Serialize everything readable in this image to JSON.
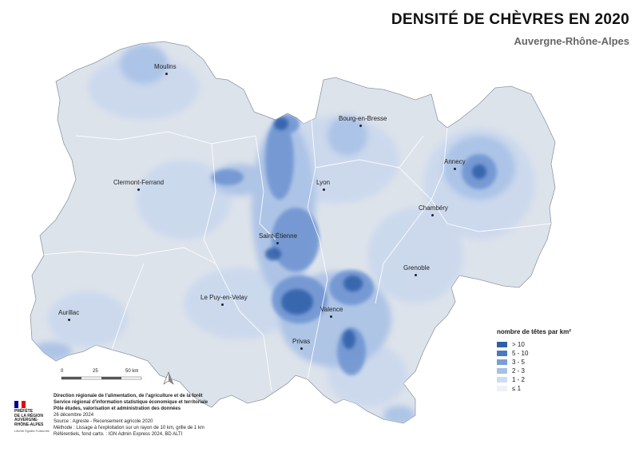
{
  "title": "DENSITÉ DE CHÈVRES EN 2020",
  "subtitle": "Auvergne-Rhône-Alpes",
  "cities": [
    {
      "id": "moulins",
      "label": "Moulins"
    },
    {
      "id": "clermont-ferrand",
      "label": "Clermont-Ferrand"
    },
    {
      "id": "bourg-en-bresse",
      "label": "Bourg-en-Bresse"
    },
    {
      "id": "lyon",
      "label": "Lyon"
    },
    {
      "id": "annecy",
      "label": "Annecy"
    },
    {
      "id": "chambery",
      "label": "Chambéry"
    },
    {
      "id": "saint-etienne",
      "label": "Saint-Étienne"
    },
    {
      "id": "grenoble",
      "label": "Grenoble"
    },
    {
      "id": "le-puy-en-velay",
      "label": "Le Puy-en-Velay"
    },
    {
      "id": "valence",
      "label": "Valence"
    },
    {
      "id": "aurillac",
      "label": "Aurillac"
    },
    {
      "id": "privas",
      "label": "Privas"
    }
  ],
  "legend": {
    "title": "nombre de têtes par km²",
    "classes": [
      {
        "label": "> 10",
        "color": "#2f5fa8"
      },
      {
        "label": "5 - 10",
        "color": "#4a79c3"
      },
      {
        "label": "3 - 5",
        "color": "#7a9fd6"
      },
      {
        "label": "2 - 3",
        "color": "#a6bfe4"
      },
      {
        "label": "1 - 2",
        "color": "#cfdcef"
      },
      {
        "label": "≤ 1",
        "color": "#eef1f6"
      }
    ]
  },
  "scale": {
    "labels": [
      "0",
      "25",
      "50 km"
    ]
  },
  "logo": {
    "line1": "PRÉFÈTE",
    "line2": "DE LA RÉGION",
    "line3": "AUVERGNE-",
    "line4": "RHÔNE-ALPES",
    "motto": "Liberté Égalité Fraternité",
    "flag_colors": [
      "#000091",
      "#ffffff",
      "#e1000f"
    ]
  },
  "footer": {
    "line1": "Direction régionale de l'alimentation, de l'agriculture et de la forêt",
    "line2": "Service régional d'information statistique économique et territoriale",
    "line3": "Pôle études, valorisation et administration des données",
    "line4": "26 décembre 2024",
    "line5": "Source : Agreste - Recensement agricole 2020",
    "line6": "Méthode : Lissage à l'exploitation sur un rayon de 10 km, grille de 1 km",
    "line7": "Référentiels, fond carto. : IGN Admin Express 2024, BD ALTI"
  },
  "colors": {
    "region_fill": "#dfe4ec",
    "dept_border": "#ffffff",
    "outline": "#9aa3b0"
  }
}
